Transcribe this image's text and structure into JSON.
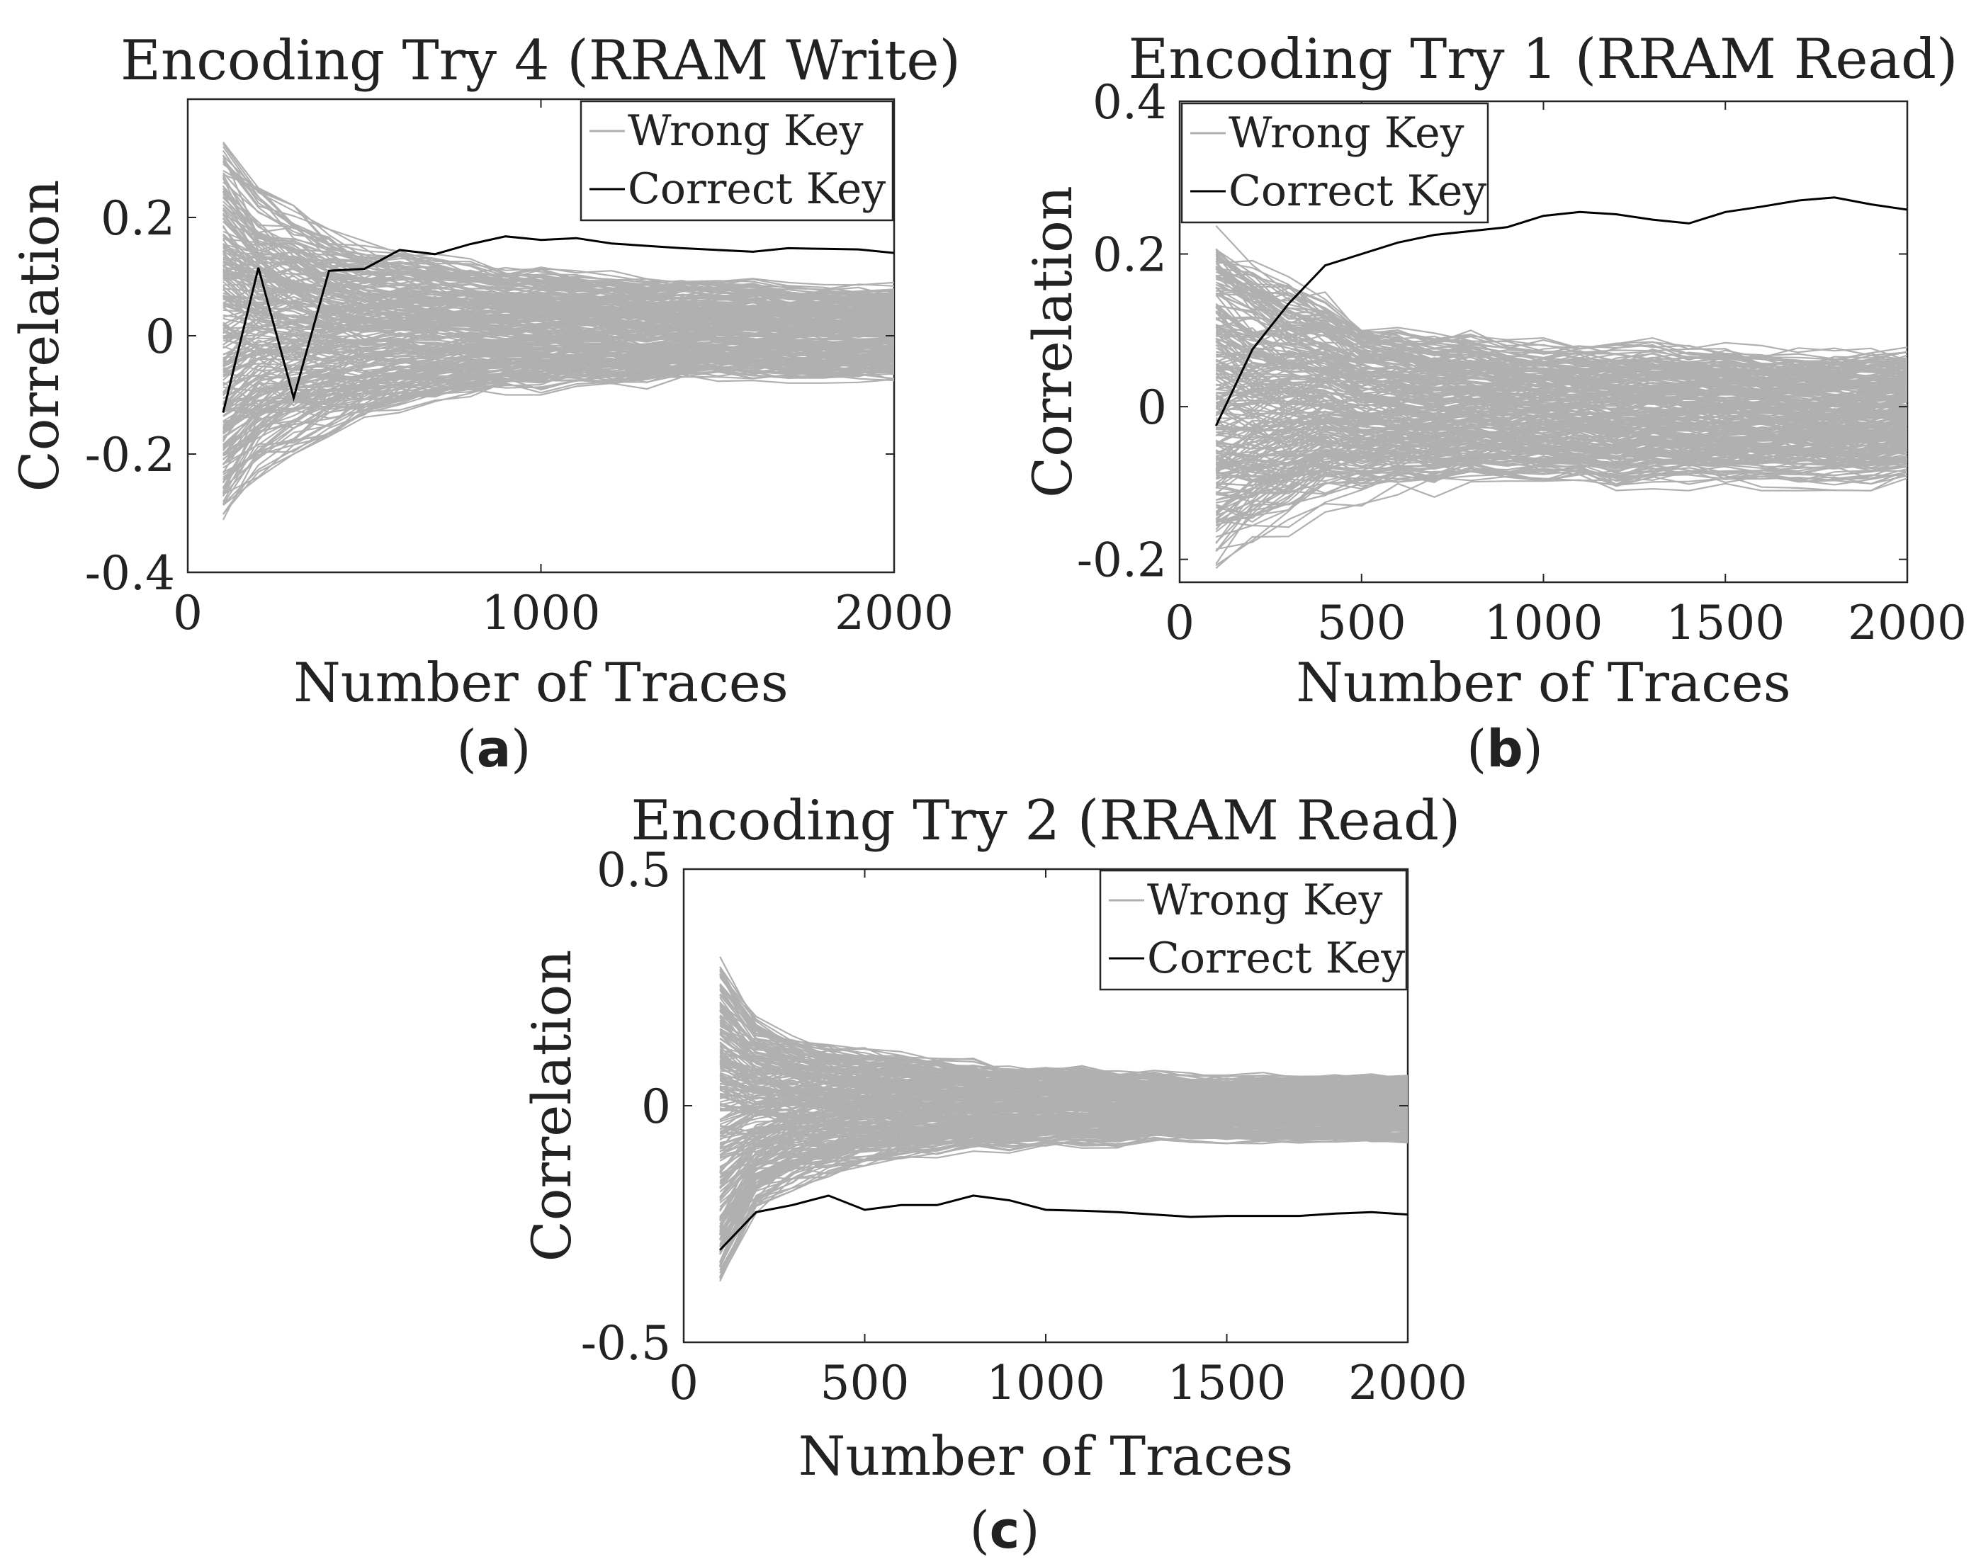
{
  "chart_data": [
    {
      "type": "line",
      "panel": "a",
      "caption_letter": "a",
      "title": "Encoding Try 4 (RRAM Write)",
      "xlabel": "Number of Traces",
      "ylabel": "Correlation",
      "xlim": [
        0,
        2000
      ],
      "ylim": [
        -0.4,
        0.4
      ],
      "xticks": [
        0,
        1000,
        2000
      ],
      "xtick_labels": [
        "0",
        "1000",
        "2000"
      ],
      "yticks": [
        -0.4,
        -0.2,
        0,
        0.2
      ],
      "ytick_labels": [
        "-0.4",
        "-0.2",
        "0",
        "0.2"
      ],
      "legend_position": "top-right",
      "legend": [
        "Wrong Key",
        "Correct Key"
      ],
      "x": [
        100,
        200,
        300,
        400,
        500,
        600,
        700,
        800,
        900,
        1000,
        1100,
        1200,
        1300,
        1400,
        1500,
        1600,
        1700,
        1800,
        1900,
        2000
      ],
      "correct_key": [
        -0.13,
        0.115,
        -0.105,
        0.11,
        0.113,
        0.145,
        0.138,
        0.155,
        0.168,
        0.162,
        0.165,
        0.156,
        0.152,
        0.148,
        0.145,
        0.142,
        0.148,
        0.147,
        0.146,
        0.14
      ],
      "wrong_key_envelope": {
        "upper": [
          0.34,
          0.25,
          0.22,
          0.18,
          0.16,
          0.15,
          0.14,
          0.13,
          0.12,
          0.12,
          0.11,
          0.11,
          0.1,
          0.1,
          0.1,
          0.1,
          0.09,
          0.09,
          0.09,
          0.09
        ],
        "lower": [
          -0.33,
          -0.24,
          -0.2,
          -0.17,
          -0.15,
          -0.13,
          -0.12,
          -0.11,
          -0.1,
          -0.1,
          -0.09,
          -0.09,
          -0.09,
          -0.08,
          -0.08,
          -0.08,
          -0.08,
          -0.08,
          -0.08,
          -0.08
        ]
      },
      "wrong_key_count": 255,
      "colors": {
        "wrong": "#b0b0b0",
        "correct": "#000000"
      }
    },
    {
      "type": "line",
      "panel": "b",
      "caption_letter": "b",
      "title": "Encoding Try 1 (RRAM Read)",
      "xlabel": "Number of Traces",
      "ylabel": "Correlation",
      "xlim": [
        0,
        2000
      ],
      "ylim": [
        -0.23,
        0.4
      ],
      "xticks": [
        0,
        500,
        1000,
        1500,
        2000
      ],
      "xtick_labels": [
        "0",
        "500",
        "1000",
        "1500",
        "2000"
      ],
      "yticks": [
        -0.2,
        0,
        0.2,
        0.4
      ],
      "ytick_labels": [
        "-0.2",
        "0",
        "0.2",
        "0.4"
      ],
      "legend_position": "top-left",
      "legend": [
        "Wrong Key",
        "Correct Key"
      ],
      "x": [
        100,
        200,
        300,
        400,
        500,
        600,
        700,
        800,
        900,
        1000,
        1100,
        1200,
        1300,
        1400,
        1500,
        1600,
        1700,
        1800,
        1900,
        2000
      ],
      "correct_key": [
        -0.025,
        0.075,
        0.135,
        0.185,
        0.2,
        0.215,
        0.225,
        0.23,
        0.235,
        0.25,
        0.255,
        0.252,
        0.245,
        0.24,
        0.255,
        0.262,
        0.27,
        0.274,
        0.265,
        0.258
      ],
      "wrong_key_envelope": {
        "upper": [
          0.24,
          0.2,
          0.17,
          0.15,
          0.12,
          0.11,
          0.1,
          0.1,
          0.09,
          0.09,
          0.09,
          0.09,
          0.09,
          0.085,
          0.085,
          0.08,
          0.08,
          0.08,
          0.08,
          0.08
        ],
        "lower": [
          -0.23,
          -0.2,
          -0.17,
          -0.14,
          -0.13,
          -0.12,
          -0.12,
          -0.11,
          -0.11,
          -0.11,
          -0.11,
          -0.12,
          -0.11,
          -0.11,
          -0.11,
          -0.11,
          -0.11,
          -0.11,
          -0.11,
          -0.1
        ]
      },
      "wrong_key_count": 255,
      "colors": {
        "wrong": "#b0b0b0",
        "correct": "#000000"
      }
    },
    {
      "type": "line",
      "panel": "c",
      "caption_letter": "c",
      "title": "Encoding Try 2 (RRAM Read)",
      "xlabel": "Number of Traces",
      "ylabel": "Correlation",
      "xlim": [
        0,
        2000
      ],
      "ylim": [
        -0.5,
        0.5
      ],
      "xticks": [
        0,
        500,
        1000,
        1500,
        2000
      ],
      "xtick_labels": [
        "0",
        "500",
        "1000",
        "1500",
        "2000"
      ],
      "yticks": [
        -0.5,
        0,
        0.5
      ],
      "ytick_labels": [
        "-0.5",
        "0",
        "0.5"
      ],
      "legend_position": "top-right",
      "legend": [
        "Wrong Key",
        "Correct Key"
      ],
      "x": [
        100,
        200,
        300,
        400,
        500,
        600,
        700,
        800,
        900,
        1000,
        1100,
        1200,
        1300,
        1400,
        1500,
        1600,
        1700,
        1800,
        1900,
        2000
      ],
      "correct_key": [
        -0.305,
        -0.225,
        -0.21,
        -0.19,
        -0.22,
        -0.21,
        -0.21,
        -0.19,
        -0.2,
        -0.22,
        -0.222,
        -0.225,
        -0.23,
        -0.235,
        -0.233,
        -0.233,
        -0.233,
        -0.228,
        -0.225,
        -0.23
      ],
      "wrong_key_envelope": {
        "upper": [
          0.33,
          0.2,
          0.16,
          0.14,
          0.13,
          0.12,
          0.11,
          0.1,
          0.09,
          0.09,
          0.09,
          0.08,
          0.08,
          0.07,
          0.07,
          0.07,
          0.07,
          0.07,
          0.07,
          0.07
        ],
        "lower": [
          -0.4,
          -0.23,
          -0.18,
          -0.15,
          -0.13,
          -0.12,
          -0.11,
          -0.1,
          -0.1,
          -0.09,
          -0.09,
          -0.09,
          -0.08,
          -0.08,
          -0.08,
          -0.08,
          -0.08,
          -0.08,
          -0.08,
          -0.08
        ]
      },
      "wrong_key_count": 255,
      "colors": {
        "wrong": "#b0b0b0",
        "correct": "#000000"
      }
    }
  ]
}
